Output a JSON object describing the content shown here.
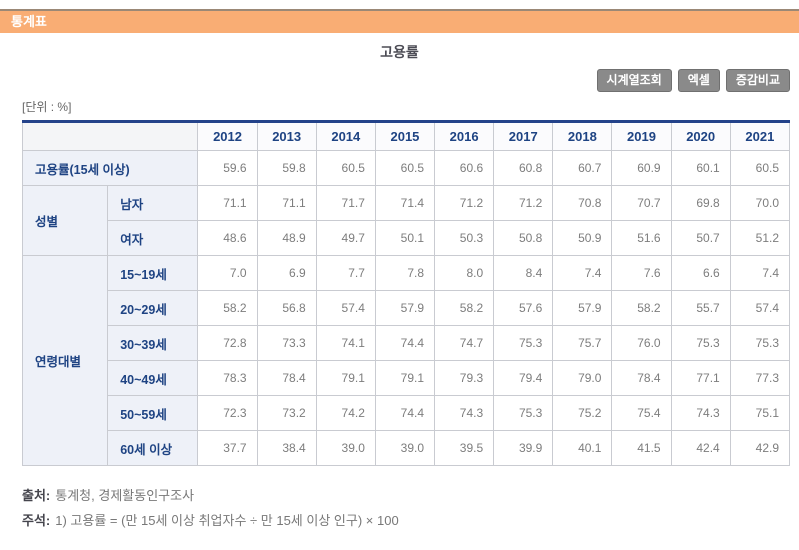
{
  "header": {
    "section_title": "통계표",
    "page_title": "고용률",
    "unit_label": "[단위 : %]"
  },
  "toolbar": {
    "buttons": [
      {
        "label": "시계열조회"
      },
      {
        "label": "엑셀"
      },
      {
        "label": "증감비교"
      }
    ]
  },
  "table": {
    "years": [
      "2012",
      "2013",
      "2014",
      "2015",
      "2016",
      "2017",
      "2018",
      "2019",
      "2020",
      "2021"
    ],
    "row_groups": [
      {
        "group": "",
        "rows": [
          {
            "label": "고용률(15세 이상)",
            "values": [
              "59.6",
              "59.8",
              "60.5",
              "60.5",
              "60.6",
              "60.8",
              "60.7",
              "60.9",
              "60.1",
              "60.5"
            ]
          }
        ]
      },
      {
        "group": "성별",
        "rows": [
          {
            "label": "남자",
            "values": [
              "71.1",
              "71.1",
              "71.7",
              "71.4",
              "71.2",
              "71.2",
              "70.8",
              "70.7",
              "69.8",
              "70.0"
            ]
          },
          {
            "label": "여자",
            "values": [
              "48.6",
              "48.9",
              "49.7",
              "50.1",
              "50.3",
              "50.8",
              "50.9",
              "51.6",
              "50.7",
              "51.2"
            ]
          }
        ]
      },
      {
        "group": "연령대별",
        "rows": [
          {
            "label": "15~19세",
            "values": [
              "7.0",
              "6.9",
              "7.7",
              "7.8",
              "8.0",
              "8.4",
              "7.4",
              "7.6",
              "6.6",
              "7.4"
            ]
          },
          {
            "label": "20~29세",
            "values": [
              "58.2",
              "56.8",
              "57.4",
              "57.9",
              "58.2",
              "57.6",
              "57.9",
              "58.2",
              "55.7",
              "57.4"
            ]
          },
          {
            "label": "30~39세",
            "values": [
              "72.8",
              "73.3",
              "74.1",
              "74.4",
              "74.7",
              "75.3",
              "75.7",
              "76.0",
              "75.3",
              "75.3"
            ]
          },
          {
            "label": "40~49세",
            "values": [
              "78.3",
              "78.4",
              "79.1",
              "79.1",
              "79.3",
              "79.4",
              "79.0",
              "78.4",
              "77.1",
              "77.3"
            ]
          },
          {
            "label": "50~59세",
            "values": [
              "72.3",
              "73.2",
              "74.2",
              "74.4",
              "74.3",
              "75.3",
              "75.2",
              "75.4",
              "74.3",
              "75.1"
            ]
          },
          {
            "label": "60세 이상",
            "values": [
              "37.7",
              "38.4",
              "39.0",
              "39.0",
              "39.5",
              "39.9",
              "40.1",
              "41.5",
              "42.4",
              "42.9"
            ]
          }
        ]
      }
    ]
  },
  "footer": {
    "source_label": "출처:",
    "source_text": "통계청, 경제활동인구조사",
    "note_label": "주석:",
    "note_text": "1) 고용률 = (만 15세 이상 취업자수 ÷ 만 15세 이상 인구) × 100"
  },
  "colors": {
    "section_bar_bg": "#f9ad74",
    "section_bar_border": "#9b8876",
    "table_top_border": "#24438a",
    "header_text": "#1e4383",
    "row_header_bg": "#eef1f8",
    "cell_border": "#c9cbd1",
    "button_bg": "#8a8a8a",
    "data_text": "#7d7d7d"
  }
}
